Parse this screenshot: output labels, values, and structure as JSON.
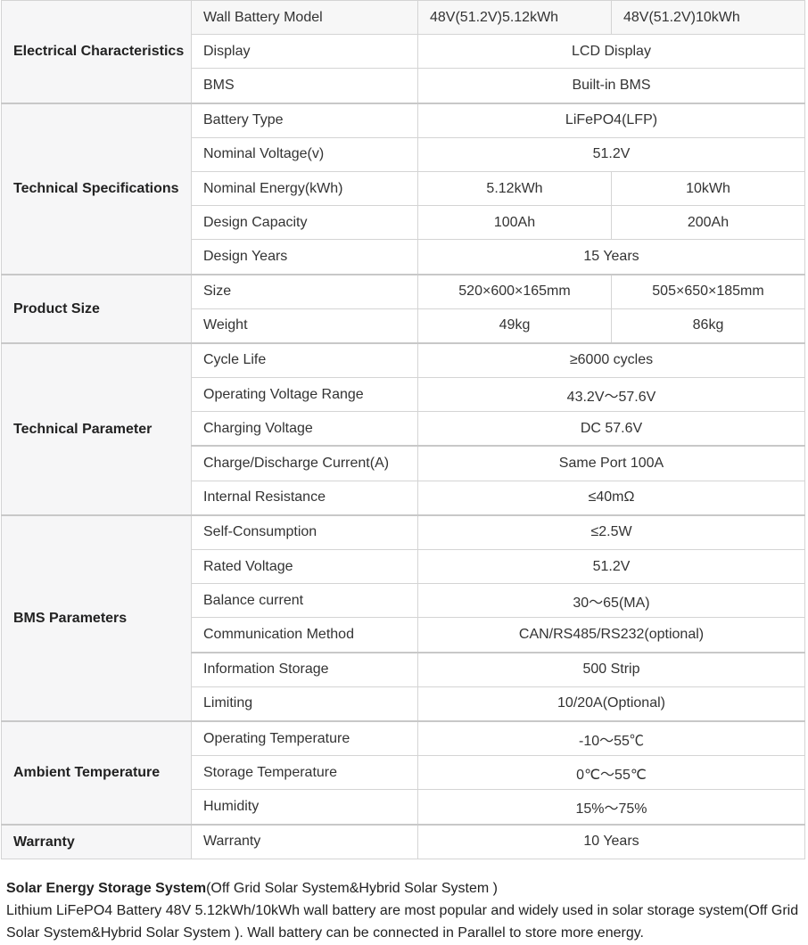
{
  "groups": [
    {
      "title": "Electrical Characteristics",
      "rows": [
        {
          "label": "Wall Battery Model",
          "values": [
            "48V(51.2V)5.12kWh",
            "48V(51.2V)10kWh"
          ],
          "header": true
        },
        {
          "label": "Display",
          "values": [
            "LCD Display"
          ]
        },
        {
          "label": "BMS",
          "values": [
            "Built-in BMS"
          ]
        }
      ]
    },
    {
      "title": "Technical Specifications",
      "rows": [
        {
          "label": "Battery Type",
          "values": [
            "LiFePO4(LFP)"
          ]
        },
        {
          "label": "Nominal Voltage(v)",
          "values": [
            "51.2V"
          ]
        },
        {
          "label": "Nominal Energy(kWh)",
          "values": [
            "5.12kWh",
            "10kWh"
          ]
        },
        {
          "label": "Design Capacity",
          "values": [
            "100Ah",
            "200Ah"
          ]
        },
        {
          "label": "Design Years",
          "values": [
            "15 Years"
          ]
        }
      ]
    },
    {
      "title": "Product Size",
      "rows": [
        {
          "label": "Size",
          "values": [
            "520×600×165mm",
            "505×650×185mm"
          ]
        },
        {
          "label": "Weight",
          "values": [
            "49kg",
            "86kg"
          ]
        }
      ]
    },
    {
      "title": "Technical Parameter",
      "rows": [
        {
          "label": "Cycle Life",
          "values": [
            "≥6000 cycles"
          ]
        },
        {
          "label": "Operating Voltage Range",
          "values": [
            "43.2V～57.6V"
          ]
        },
        {
          "label": "Charging Voltage",
          "values": [
            "DC 57.6V"
          ]
        },
        {
          "label": "Charge/Discharge Current(A)",
          "values": [
            "Same Port 100A"
          ],
          "thick": true
        },
        {
          "label": "Internal Resistance",
          "values": [
            "≤40mΩ"
          ]
        }
      ]
    },
    {
      "title": "BMS Parameters",
      "rows": [
        {
          "label": "Self-Consumption",
          "values": [
            "≤2.5W"
          ]
        },
        {
          "label": "Rated Voltage",
          "values": [
            "51.2V"
          ]
        },
        {
          "label": "Balance current",
          "values": [
            "30～65(MA)"
          ]
        },
        {
          "label": "Communication Method",
          "values": [
            "CAN/RS485/RS232(optional)"
          ]
        },
        {
          "label": "Information Storage",
          "values": [
            "500 Strip"
          ],
          "thick": true
        },
        {
          "label": "Limiting",
          "values": [
            "10/20A(Optional)"
          ]
        }
      ]
    },
    {
      "title": "Ambient Temperature",
      "rows": [
        {
          "label": "Operating Temperature",
          "values": [
            "-10～55℃"
          ]
        },
        {
          "label": "Storage Temperature",
          "values": [
            "0℃～55℃"
          ]
        },
        {
          "label": "Humidity",
          "values": [
            "15%～75%"
          ]
        }
      ]
    },
    {
      "title": "Warranty",
      "rows": [
        {
          "label": "Warranty",
          "values": [
            "10 Years"
          ]
        }
      ]
    }
  ],
  "description": {
    "heading": "Solar Energy Storage System",
    "heading_suffix": "(Off Grid Solar System&Hybrid Solar System )",
    "body": "Lithium LiFePO4 Battery 48V 5.12kWh/10kWh wall battery are most popular and widely used in solar storage system(Off Grid Solar System&Hybrid Solar System ). Wall battery can be connected in Parallel to store more energy."
  }
}
